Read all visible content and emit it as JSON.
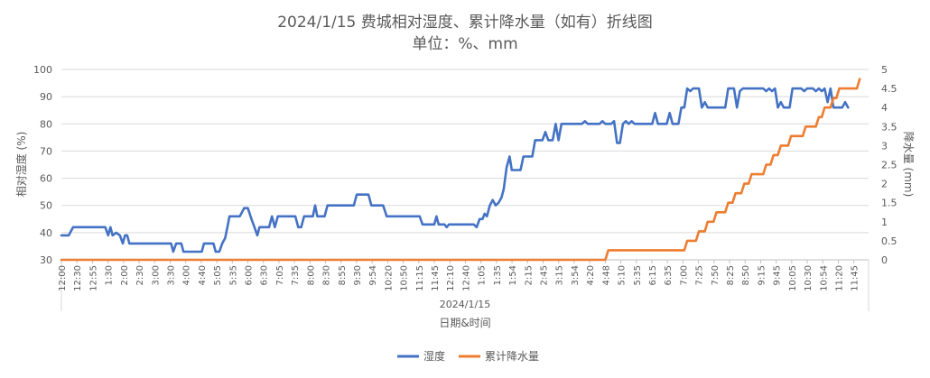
{
  "chart_data": {
    "type": "line",
    "title": "2024/1/15 费城相对湿度、累计降水量（如有）折线图",
    "subtitle": "单位：%、mm",
    "xlabel": "日期&时间",
    "date_group_label": "2024/1/15",
    "ylabel_left": "相对湿度 (%)",
    "ylabel_right": "降水量 (mm)",
    "ylim_left": [
      30,
      100
    ],
    "ylim_right": [
      0,
      5
    ],
    "yticks_left": [
      "30",
      "40",
      "50",
      "60",
      "70",
      "80",
      "90",
      "100"
    ],
    "yticks_right": [
      "0",
      "0.5",
      "1",
      "1.5",
      "2",
      "2.5",
      "3",
      "3.5",
      "4",
      "4.5",
      "5"
    ],
    "grid": "horizontal",
    "legend_position": "bottom",
    "x_tick_labels": [
      "12:00",
      "12:30",
      "12:55",
      "1:30",
      "2:00",
      "2:30",
      "3:00",
      "3:30",
      "4:00",
      "4:40",
      "5:05",
      "5:35",
      "6:00",
      "6:30",
      "7:05",
      "7:35",
      "8:00",
      "8:30",
      "8:55",
      "9:30",
      "9:54",
      "10:20",
      "10:50",
      "11:15",
      "11:45",
      "12:10",
      "12:40",
      "1:05",
      "1:35",
      "1:54",
      "2:15",
      "2:45",
      "3:15",
      "3:54",
      "4:20",
      "4:48",
      "5:10",
      "5:35",
      "6:15",
      "6:35",
      "7:00",
      "7:25",
      "7:50",
      "8:25",
      "8:50",
      "9:15",
      "9:45",
      "10:05",
      "10:30",
      "10:54",
      "11:20",
      "11:45"
    ],
    "series": [
      {
        "name": "湿度",
        "color": "#4472C4",
        "axis": "left",
        "points": [
          [
            0,
            39
          ],
          [
            0.5,
            39
          ],
          [
            0.8,
            42
          ],
          [
            1.5,
            42
          ],
          [
            3.0,
            42
          ],
          [
            3.2,
            39
          ],
          [
            3.35,
            42
          ],
          [
            3.5,
            39
          ],
          [
            3.75,
            40
          ],
          [
            4.0,
            39
          ],
          [
            4.2,
            36
          ],
          [
            4.35,
            39
          ],
          [
            4.5,
            39
          ],
          [
            4.65,
            36
          ],
          [
            5.0,
            36
          ],
          [
            7.5,
            36
          ],
          [
            7.65,
            33
          ],
          [
            7.85,
            36
          ],
          [
            8.2,
            36
          ],
          [
            8.35,
            33
          ],
          [
            9.6,
            33
          ],
          [
            9.75,
            36
          ],
          [
            10.4,
            36
          ],
          [
            10.55,
            33
          ],
          [
            10.8,
            33
          ],
          [
            11.0,
            36
          ],
          [
            11.2,
            38
          ],
          [
            11.5,
            46
          ],
          [
            12.2,
            46
          ],
          [
            12.5,
            49
          ],
          [
            12.75,
            49
          ],
          [
            13.0,
            45
          ],
          [
            13.2,
            42
          ],
          [
            13.4,
            39
          ],
          [
            13.55,
            42
          ],
          [
            14.2,
            42
          ],
          [
            14.4,
            46
          ],
          [
            14.6,
            42
          ],
          [
            14.8,
            46
          ],
          [
            16.0,
            46
          ],
          [
            16.2,
            42
          ],
          [
            16.4,
            42
          ],
          [
            16.6,
            46
          ],
          [
            17.2,
            46
          ],
          [
            17.35,
            50
          ],
          [
            17.5,
            46
          ],
          [
            18.0,
            46
          ],
          [
            18.2,
            50
          ],
          [
            20.0,
            50
          ],
          [
            20.2,
            54
          ],
          [
            21.0,
            54
          ],
          [
            21.2,
            50
          ],
          [
            22.0,
            50
          ],
          [
            22.25,
            46
          ],
          [
            24.5,
            46
          ],
          [
            24.7,
            43
          ],
          [
            25.5,
            43
          ],
          [
            25.65,
            46
          ],
          [
            25.8,
            43
          ],
          [
            26.2,
            43
          ],
          [
            26.35,
            42
          ],
          [
            26.5,
            43
          ],
          [
            28.2,
            43
          ],
          [
            28.4,
            42
          ],
          [
            28.6,
            45
          ],
          [
            28.8,
            45
          ],
          [
            28.95,
            47
          ],
          [
            29.1,
            46
          ],
          [
            29.3,
            50
          ],
          [
            29.5,
            52
          ],
          [
            29.7,
            50
          ],
          [
            29.9,
            51
          ],
          [
            30.1,
            53
          ],
          [
            30.25,
            56
          ],
          [
            30.45,
            64
          ],
          [
            30.65,
            68
          ],
          [
            30.8,
            63
          ],
          [
            31.4,
            63
          ],
          [
            31.6,
            68
          ],
          [
            32.2,
            68
          ],
          [
            32.4,
            74
          ],
          [
            32.9,
            74
          ],
          [
            33.1,
            77
          ],
          [
            33.3,
            74
          ],
          [
            33.6,
            74
          ],
          [
            33.8,
            80
          ],
          [
            34.0,
            74
          ],
          [
            34.2,
            80
          ],
          [
            35.6,
            80
          ],
          [
            35.8,
            81
          ],
          [
            36.0,
            80
          ],
          [
            36.8,
            80
          ],
          [
            37.0,
            81
          ],
          [
            37.2,
            80
          ],
          [
            37.6,
            80
          ],
          [
            37.8,
            81
          ],
          [
            38.0,
            73
          ],
          [
            38.2,
            73
          ],
          [
            38.4,
            80
          ],
          [
            38.6,
            81
          ],
          [
            38.8,
            80
          ],
          [
            39.0,
            81
          ],
          [
            39.2,
            80
          ],
          [
            40.4,
            80
          ],
          [
            40.6,
            84
          ],
          [
            40.8,
            80
          ],
          [
            41.4,
            80
          ],
          [
            41.6,
            84
          ],
          [
            41.8,
            80
          ],
          [
            42.2,
            80
          ],
          [
            42.4,
            86
          ],
          [
            42.6,
            86
          ],
          [
            42.8,
            93
          ],
          [
            43.0,
            92
          ],
          [
            43.2,
            93
          ],
          [
            43.6,
            93
          ],
          [
            43.8,
            86
          ],
          [
            44.0,
            88
          ],
          [
            44.2,
            86
          ],
          [
            45.4,
            86
          ],
          [
            45.6,
            93
          ],
          [
            46.0,
            93
          ],
          [
            46.2,
            86
          ],
          [
            46.4,
            92
          ],
          [
            46.6,
            93
          ],
          [
            48.0,
            93
          ],
          [
            48.2,
            92
          ],
          [
            48.4,
            93
          ],
          [
            48.6,
            92
          ],
          [
            48.8,
            93
          ],
          [
            49.0,
            86
          ],
          [
            49.2,
            88
          ],
          [
            49.4,
            86
          ],
          [
            49.8,
            86
          ],
          [
            50.0,
            93
          ],
          [
            50.6,
            93
          ],
          [
            50.8,
            92
          ],
          [
            51.0,
            93
          ],
          [
            51.4,
            93
          ],
          [
            51.6,
            92
          ],
          [
            51.8,
            93
          ],
          [
            52.0,
            92
          ],
          [
            52.2,
            93
          ],
          [
            52.4,
            88
          ],
          [
            52.6,
            93
          ],
          [
            52.8,
            86
          ],
          [
            53.4,
            86
          ],
          [
            53.6,
            88
          ],
          [
            53.8,
            86
          ]
        ]
      },
      {
        "name": "累计降水量",
        "color": "#ED7D31",
        "axis": "right",
        "points": [
          [
            0,
            0
          ],
          [
            37.2,
            0
          ],
          [
            37.4,
            0.25
          ],
          [
            42.6,
            0.25
          ],
          [
            42.8,
            0.5
          ],
          [
            43.4,
            0.5
          ],
          [
            43.6,
            0.75
          ],
          [
            44.0,
            0.75
          ],
          [
            44.2,
            1.0
          ],
          [
            44.6,
            1.0
          ],
          [
            44.8,
            1.25
          ],
          [
            45.4,
            1.25
          ],
          [
            45.6,
            1.5
          ],
          [
            45.9,
            1.5
          ],
          [
            46.1,
            1.75
          ],
          [
            46.5,
            1.75
          ],
          [
            46.7,
            2.0
          ],
          [
            47.0,
            2.0
          ],
          [
            47.2,
            2.25
          ],
          [
            48.0,
            2.25
          ],
          [
            48.2,
            2.5
          ],
          [
            48.5,
            2.5
          ],
          [
            48.7,
            2.75
          ],
          [
            49.0,
            2.75
          ],
          [
            49.2,
            3.0
          ],
          [
            49.7,
            3.0
          ],
          [
            49.9,
            3.25
          ],
          [
            50.7,
            3.25
          ],
          [
            50.9,
            3.5
          ],
          [
            51.6,
            3.5
          ],
          [
            51.8,
            3.75
          ],
          [
            52.0,
            3.75
          ],
          [
            52.2,
            4.0
          ],
          [
            52.6,
            4.0
          ],
          [
            52.8,
            4.25
          ],
          [
            53.0,
            4.25
          ],
          [
            53.2,
            4.5
          ],
          [
            54.4,
            4.5
          ],
          [
            54.6,
            4.75
          ]
        ]
      }
    ]
  }
}
